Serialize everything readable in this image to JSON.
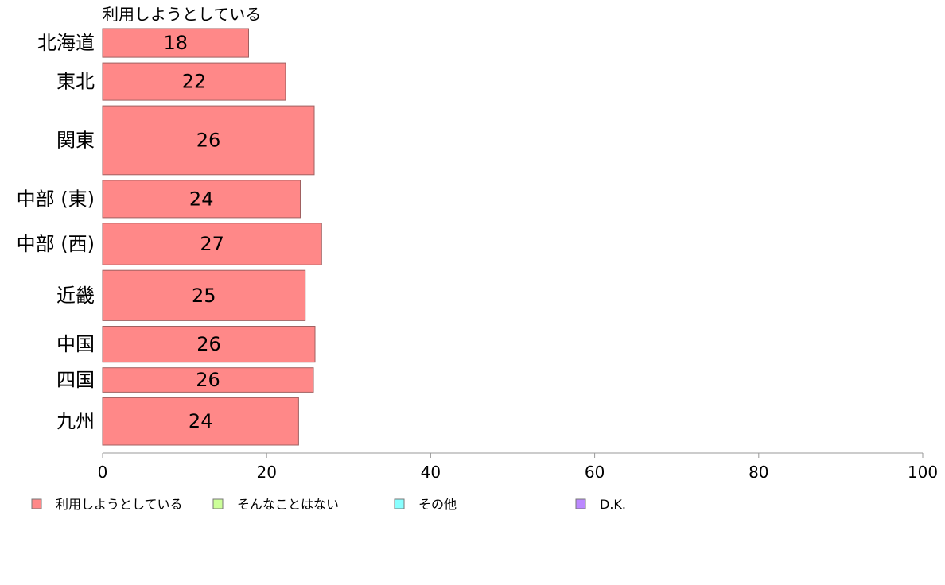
{
  "chart_data": {
    "type": "bar",
    "orientation": "horizontal",
    "series_title": "利用しようとしている",
    "categories": [
      "北海道",
      "東北",
      "関東",
      "中部 (東)",
      "中部 (西)",
      "近畿",
      "中国",
      "四国",
      "九州"
    ],
    "values": [
      17.8,
      22.3,
      25.8,
      24.1,
      26.7,
      24.7,
      25.9,
      25.7,
      23.9
    ],
    "value_labels": [
      "18",
      "22",
      "26",
      "24",
      "27",
      "25",
      "26",
      "26",
      "24"
    ],
    "relative_weights": [
      1.0,
      1.3,
      2.4,
      1.3,
      1.45,
      1.75,
      1.25,
      0.85,
      1.65
    ],
    "xlim": [
      0,
      100
    ],
    "xticks": [
      "0",
      "20",
      "40",
      "60",
      "80",
      "100"
    ],
    "legend_placement": "bottom",
    "legend": [
      {
        "label": "利用しようとしている",
        "color": "#ff8888"
      },
      {
        "label": "そんなことはない",
        "color": "#ccff99"
      },
      {
        "label": "その他",
        "color": "#88ffff"
      },
      {
        "label": "D.K.",
        "color": "#bb88ff"
      }
    ],
    "bar_color": "#ff8888",
    "bar_stroke": "#a06060",
    "axis_color": "#999999"
  }
}
